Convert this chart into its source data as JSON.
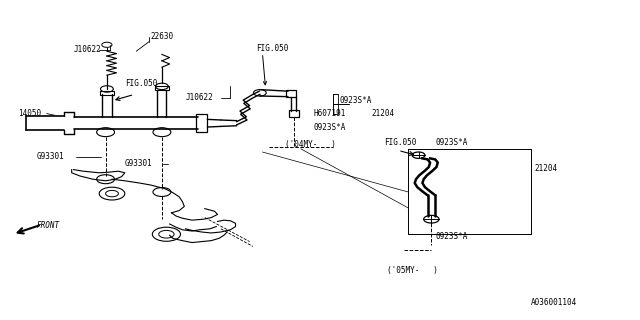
{
  "bg_color": "#ffffff",
  "lc": "#000000",
  "fig_width": 6.4,
  "fig_height": 3.2,
  "dpi": 100,
  "labels": {
    "J10622_1": [
      0.115,
      0.845,
      "J10622"
    ],
    "22630": [
      0.235,
      0.885,
      "22630"
    ],
    "14050": [
      0.028,
      0.645,
      "14050"
    ],
    "FIG050_1": [
      0.195,
      0.74,
      "FIG.050"
    ],
    "J10622_2": [
      0.29,
      0.695,
      "J10622"
    ],
    "FIG050_2": [
      0.4,
      0.85,
      "FIG.050"
    ],
    "G93301_1": [
      0.058,
      0.51,
      "G93301"
    ],
    "G93301_2": [
      0.195,
      0.488,
      "G93301"
    ],
    "FRONT": [
      0.058,
      0.295,
      "FRONT"
    ],
    "0923SA_1": [
      0.53,
      0.685,
      "0923S*A"
    ],
    "H607191": [
      0.49,
      0.645,
      "H607191"
    ],
    "21204_1": [
      0.58,
      0.645,
      "21204"
    ],
    "0923SA_2": [
      0.49,
      0.603,
      "0923S*A"
    ],
    "04MY": [
      0.445,
      0.55,
      "('04MY-   )"
    ],
    "FIG050_3": [
      0.6,
      0.555,
      "FIG.050"
    ],
    "0923SA_3": [
      0.68,
      0.555,
      "0923S*A"
    ],
    "21204_2": [
      0.835,
      0.475,
      "21204"
    ],
    "0923SA_4": [
      0.68,
      0.262,
      "0923S*A"
    ],
    "05MY": [
      0.605,
      0.155,
      "('05MY-   )"
    ],
    "part_no": [
      0.83,
      0.055,
      "A036001104"
    ]
  }
}
